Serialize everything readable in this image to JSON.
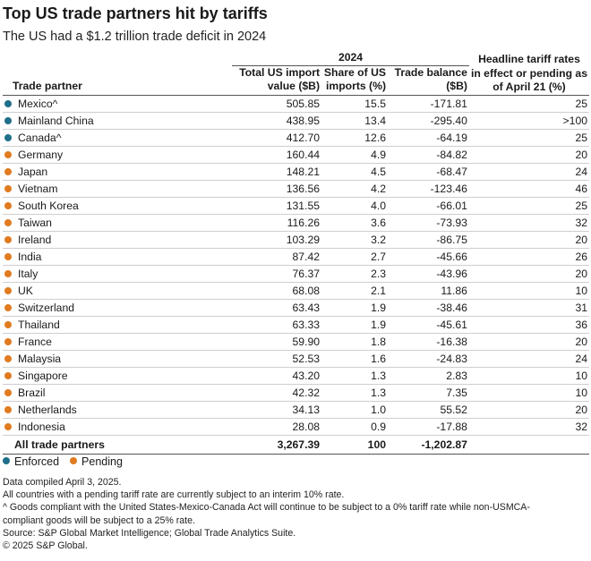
{
  "title": "Top US trade partners hit by tariffs",
  "subtitle": "The US had a $1.2 trillion trade deficit in 2024",
  "colors": {
    "enforced": "#1f6f8b",
    "pending": "#e07b20"
  },
  "table": {
    "group_header": "2024",
    "columns": {
      "partner": "Trade partner",
      "import_line1": "Total US import",
      "import_line2": "value ($B)",
      "share_line1": "Share of US",
      "share_line2": "imports (%)",
      "balance_line1": "Trade balance",
      "balance_line2": "($B)",
      "tariff_line1": "Headline tariff rates",
      "tariff_line2": "in effect or pending as",
      "tariff_line3": "of April 21 (%)"
    },
    "rows": [
      {
        "partner": "Mexico^",
        "status": "enforced",
        "imports": "505.85",
        "share": "15.5",
        "balance": "-171.81",
        "tariff": "25"
      },
      {
        "partner": "Mainland China",
        "status": "enforced",
        "imports": "438.95",
        "share": "13.4",
        "balance": "-295.40",
        "tariff": ">100"
      },
      {
        "partner": "Canada^",
        "status": "enforced",
        "imports": "412.70",
        "share": "12.6",
        "balance": "-64.19",
        "tariff": "25"
      },
      {
        "partner": "Germany",
        "status": "pending",
        "imports": "160.44",
        "share": "4.9",
        "balance": "-84.82",
        "tariff": "20"
      },
      {
        "partner": "Japan",
        "status": "pending",
        "imports": "148.21",
        "share": "4.5",
        "balance": "-68.47",
        "tariff": "24"
      },
      {
        "partner": "Vietnam",
        "status": "pending",
        "imports": "136.56",
        "share": "4.2",
        "balance": "-123.46",
        "tariff": "46"
      },
      {
        "partner": "South Korea",
        "status": "pending",
        "imports": "131.55",
        "share": "4.0",
        "balance": "-66.01",
        "tariff": "25"
      },
      {
        "partner": "Taiwan",
        "status": "pending",
        "imports": "116.26",
        "share": "3.6",
        "balance": "-73.93",
        "tariff": "32"
      },
      {
        "partner": "Ireland",
        "status": "pending",
        "imports": "103.29",
        "share": "3.2",
        "balance": "-86.75",
        "tariff": "20"
      },
      {
        "partner": "India",
        "status": "pending",
        "imports": "87.42",
        "share": "2.7",
        "balance": "-45.66",
        "tariff": "26"
      },
      {
        "partner": "Italy",
        "status": "pending",
        "imports": "76.37",
        "share": "2.3",
        "balance": "-43.96",
        "tariff": "20"
      },
      {
        "partner": "UK",
        "status": "pending",
        "imports": "68.08",
        "share": "2.1",
        "balance": "11.86",
        "tariff": "10"
      },
      {
        "partner": "Switzerland",
        "status": "pending",
        "imports": "63.43",
        "share": "1.9",
        "balance": "-38.46",
        "tariff": "31"
      },
      {
        "partner": "Thailand",
        "status": "pending",
        "imports": "63.33",
        "share": "1.9",
        "balance": "-45.61",
        "tariff": "36"
      },
      {
        "partner": "France",
        "status": "pending",
        "imports": "59.90",
        "share": "1.8",
        "balance": "-16.38",
        "tariff": "20"
      },
      {
        "partner": "Malaysia",
        "status": "pending",
        "imports": "52.53",
        "share": "1.6",
        "balance": "-24.83",
        "tariff": "24"
      },
      {
        "partner": "Singapore",
        "status": "pending",
        "imports": "43.20",
        "share": "1.3",
        "balance": "2.83",
        "tariff": "10"
      },
      {
        "partner": "Brazil",
        "status": "pending",
        "imports": "42.32",
        "share": "1.3",
        "balance": "7.35",
        "tariff": "10"
      },
      {
        "partner": "Netherlands",
        "status": "pending",
        "imports": "34.13",
        "share": "1.0",
        "balance": "55.52",
        "tariff": "20"
      },
      {
        "partner": "Indonesia",
        "status": "pending",
        "imports": "28.08",
        "share": "0.9",
        "balance": "-17.88",
        "tariff": "32"
      }
    ],
    "total": {
      "partner": "All trade partners",
      "imports": "3,267.39",
      "share": "100",
      "balance": "-1,202.87",
      "tariff": ""
    }
  },
  "legend": {
    "enforced": "Enforced",
    "pending": "Pending"
  },
  "notes": [
    "Data compiled April 3, 2025.",
    "All countries with a pending tariff rate are currently subject to an interim 10% rate.",
    "^ Goods compliant with the United States-Mexico-Canada Act will continue to be subject to a 0% tariff rate while non-USMCA-",
    "compliant goods will be subject to a 25% rate.",
    "Source: S&P Global Market Intelligence; Global Trade Analytics Suite.",
    "© 2025 S&P Global."
  ]
}
